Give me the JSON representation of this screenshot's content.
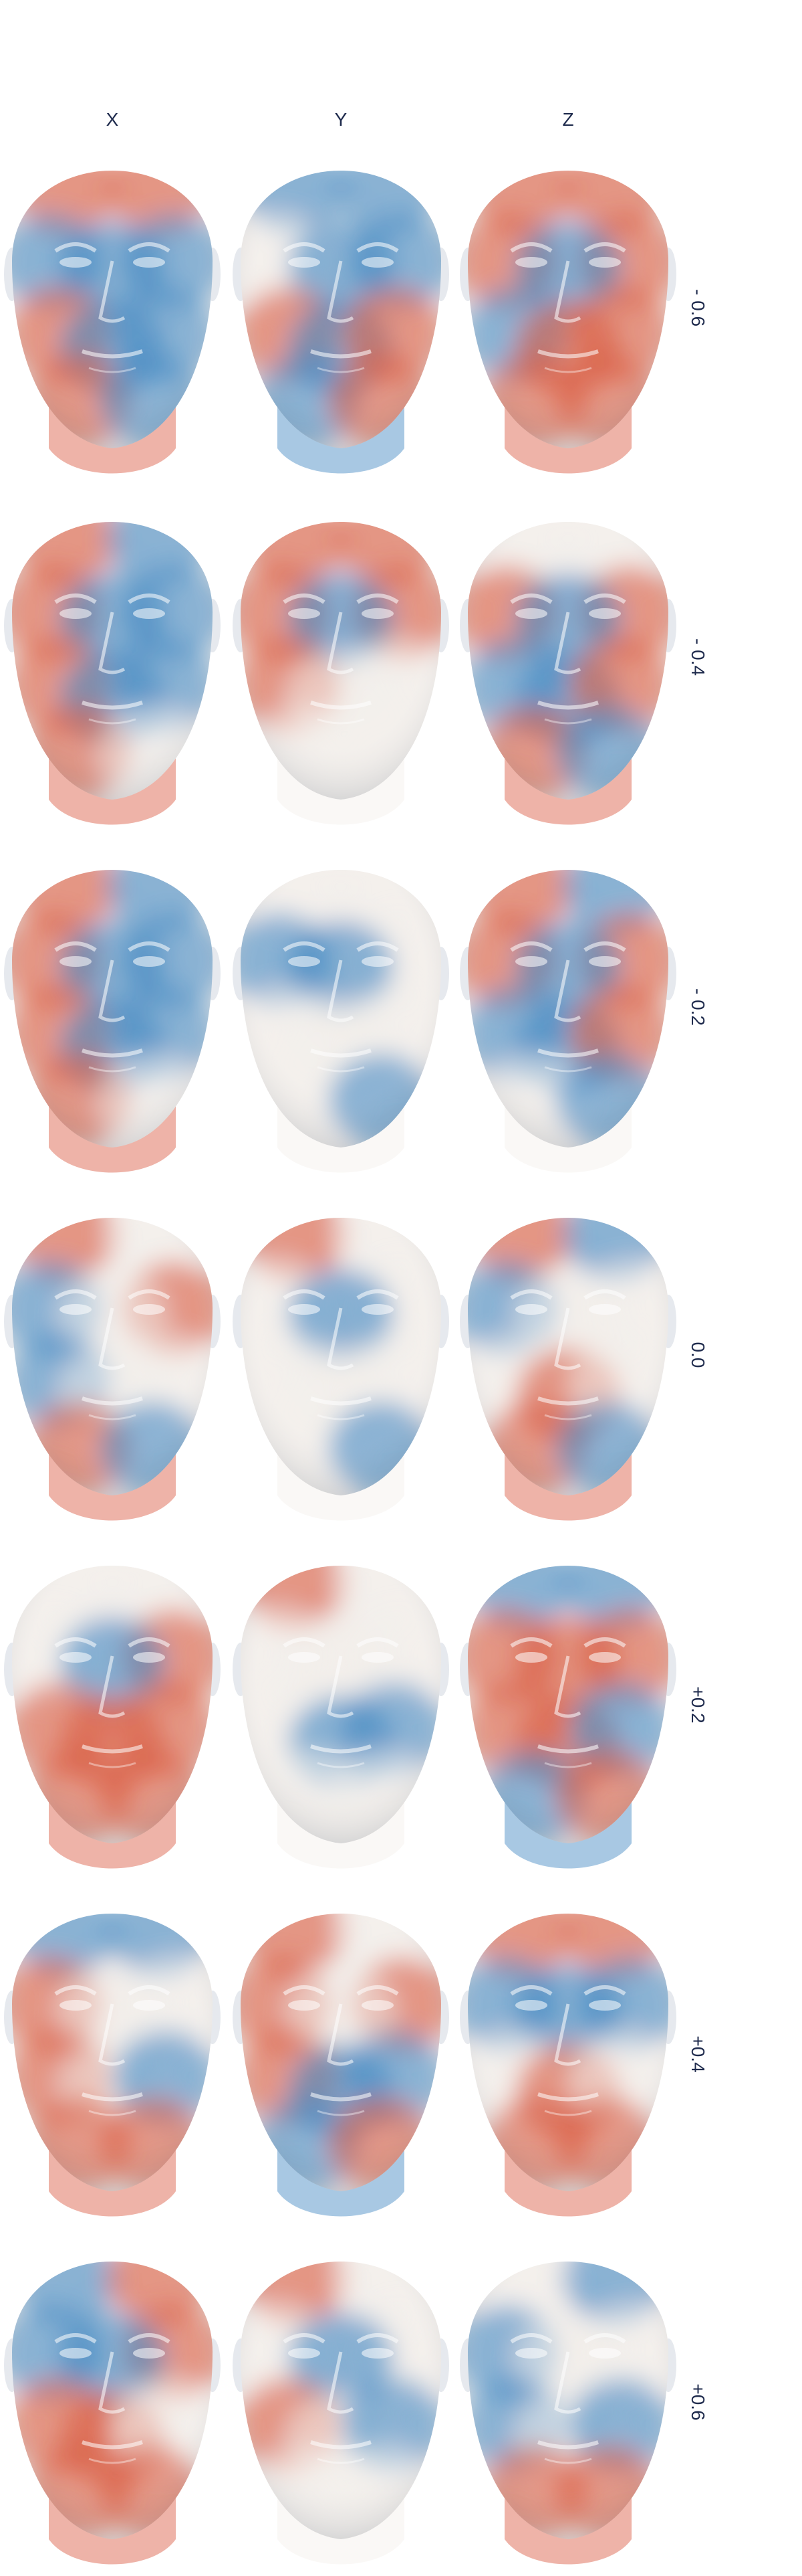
{
  "columns": [
    "X",
    "Y",
    "Z"
  ],
  "rows": [
    "- 0.6",
    "- 0.4",
    "- 0.2",
    "0.0",
    "+0.2",
    "+0.4",
    "+0.6"
  ],
  "colors": {
    "positive": "#d9573d",
    "negative": "#3f86c2",
    "neutral": "#f3efeb",
    "label": "#1f2b4d"
  },
  "heatmap_pattern": [
    [
      [
        "red",
        "red",
        "blue",
        "blue",
        "blue",
        "red",
        "blue",
        "blue",
        "red",
        "blue"
      ],
      [
        "blue",
        "blue",
        "white",
        "blue",
        "blue",
        "red",
        "blue",
        "red",
        "blue",
        "red"
      ],
      [
        "red",
        "red",
        "red",
        "red",
        "blue",
        "blue",
        "red",
        "red",
        "red",
        "red"
      ]
    ],
    [
      [
        "red",
        "blue",
        "red",
        "blue",
        "blue",
        "red",
        "blue",
        "blue",
        "red",
        "white"
      ],
      [
        "red",
        "red",
        "red",
        "red",
        "blue",
        "red",
        "white",
        "white",
        "white",
        "white"
      ],
      [
        "white",
        "white",
        "red",
        "red",
        "blue",
        "blue",
        "blue",
        "red",
        "red",
        "blue"
      ]
    ],
    [
      [
        "red",
        "blue",
        "red",
        "blue",
        "blue",
        "red",
        "blue",
        "blue",
        "red",
        "white"
      ],
      [
        "white",
        "white",
        "blue",
        "white",
        "blue",
        "white",
        "white",
        "white",
        "white",
        "blue"
      ],
      [
        "red",
        "blue",
        "red",
        "red",
        "blue",
        "blue",
        "blue",
        "red",
        "white",
        "blue"
      ]
    ],
    [
      [
        "red",
        "white",
        "blue",
        "red",
        "white",
        "blue",
        "white",
        "white",
        "red",
        "blue"
      ],
      [
        "red",
        "white",
        "white",
        "white",
        "blue",
        "white",
        "white",
        "white",
        "white",
        "blue"
      ],
      [
        "red",
        "blue",
        "blue",
        "white",
        "white",
        "white",
        "red",
        "white",
        "red",
        "blue"
      ]
    ],
    [
      [
        "white",
        "white",
        "white",
        "red",
        "blue",
        "red",
        "red",
        "red",
        "red",
        "red"
      ],
      [
        "red",
        "white",
        "white",
        "white",
        "white",
        "white",
        "blue",
        "blue",
        "white",
        "white"
      ],
      [
        "blue",
        "blue",
        "red",
        "red",
        "red",
        "red",
        "red",
        "blue",
        "blue",
        "red"
      ]
    ],
    [
      [
        "blue",
        "blue",
        "red",
        "white",
        "white",
        "red",
        "white",
        "blue",
        "red",
        "red"
      ],
      [
        "red",
        "white",
        "red",
        "red",
        "white",
        "red",
        "blue",
        "blue",
        "blue",
        "red"
      ],
      [
        "red",
        "red",
        "blue",
        "blue",
        "blue",
        "white",
        "red",
        "white",
        "red",
        "red"
      ]
    ],
    [
      [
        "blue",
        "red",
        "blue",
        "red",
        "blue",
        "red",
        "red",
        "white",
        "red",
        "red"
      ],
      [
        "red",
        "white",
        "white",
        "white",
        "blue",
        "red",
        "white",
        "blue",
        "white",
        "white"
      ],
      [
        "white",
        "blue",
        "blue",
        "white",
        "white",
        "blue",
        "white",
        "blue",
        "red",
        "red"
      ]
    ]
  ]
}
